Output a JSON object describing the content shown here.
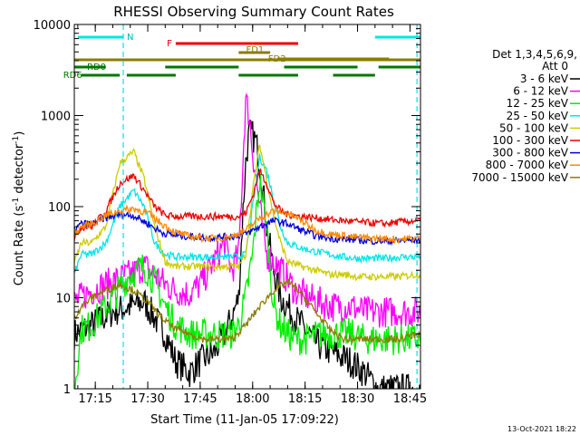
{
  "chart_data": {
    "type": "line",
    "title": "RHESSI Observing Summary Count Rates",
    "xlabel": "Start Time (11-Jan-05 17:09:22)",
    "ylabel_main": "Count Rate (s",
    "ylabel_sup1": "-1",
    "ylabel_mid": " detector",
    "ylabel_sup2": "-1",
    "ylabel_end": ")",
    "y_scale": "log",
    "ylim": [
      1,
      10000
    ],
    "xlim_min": [
      1029,
      1128
    ],
    "x_ticks": [
      {
        "t": 1035,
        "label": "17:15"
      },
      {
        "t": 1050,
        "label": "17:30"
      },
      {
        "t": 1065,
        "label": "17:45"
      },
      {
        "t": 1080,
        "label": "18:00"
      },
      {
        "t": 1095,
        "label": "18:15"
      },
      {
        "t": 1110,
        "label": "18:30"
      },
      {
        "t": 1125,
        "label": "18:45"
      }
    ],
    "y_ticks": [
      {
        "v": 1,
        "label": "1"
      },
      {
        "v": 10,
        "label": "10"
      },
      {
        "v": 100,
        "label": "100"
      },
      {
        "v": 1000,
        "label": "1000"
      },
      {
        "v": 10000,
        "label": "10000"
      }
    ],
    "legend_placement": "right",
    "legend_header": [
      "Det 1,3,4,5,6,9,",
      "Att 0"
    ],
    "footer_date": "13-Oct-2021 18:22",
    "series": [
      {
        "name": "3 - 6 keV",
        "color": "#000000",
        "x": [
          1029,
          1034,
          1040,
          1045,
          1049,
          1052,
          1055,
          1058,
          1062,
          1065,
          1069,
          1072,
          1074,
          1076,
          1077,
          1078,
          1079,
          1080,
          1081,
          1082,
          1083,
          1084,
          1086,
          1088,
          1090,
          1092,
          1094,
          1096,
          1099,
          1103,
          1108,
          1112,
          1116,
          1120,
          1124,
          1127
        ],
        "y": [
          4,
          5,
          7,
          8,
          9,
          6,
          4,
          2,
          1.5,
          2,
          2.5,
          4,
          6,
          10,
          60,
          300,
          650,
          600,
          500,
          300,
          150,
          60,
          20,
          10,
          8,
          6,
          5,
          4,
          3,
          2.5,
          2,
          1.5,
          1,
          1,
          1,
          1
        ]
      },
      {
        "name": "6 - 12 keV",
        "color": "#ff00ff",
        "x": [
          1029,
          1034,
          1040,
          1045,
          1049,
          1052,
          1055,
          1058,
          1062,
          1065,
          1069,
          1072,
          1074,
          1076,
          1077,
          1078,
          1079,
          1080,
          1081,
          1082,
          1083,
          1084,
          1086,
          1088,
          1090,
          1092,
          1094,
          1096,
          1099,
          1103,
          1108,
          1112,
          1116,
          1120,
          1124,
          1127
        ],
        "y": [
          9,
          12,
          15,
          18,
          22,
          18,
          14,
          12,
          11,
          14,
          25,
          40,
          20,
          30,
          200,
          1500,
          1000,
          400,
          200,
          100,
          50,
          30,
          25,
          20,
          16,
          12,
          11,
          10,
          9,
          8,
          8,
          7,
          7,
          7,
          7,
          7
        ]
      },
      {
        "name": "12 - 25 keV",
        "color": "#00ee00",
        "x": [
          1029,
          1031,
          1034,
          1040,
          1045,
          1049,
          1052,
          1055,
          1058,
          1062,
          1065,
          1069,
          1072,
          1074,
          1076,
          1078,
          1080,
          1082,
          1084,
          1086,
          1088,
          1090,
          1092,
          1094,
          1096,
          1099,
          1103,
          1108,
          1112,
          1116,
          1120,
          1124,
          1127
        ],
        "y": [
          1,
          4.5,
          5,
          10,
          18,
          22,
          15,
          8,
          5,
          4,
          4,
          4,
          4,
          4,
          5,
          10,
          30,
          200,
          60,
          8,
          5,
          4,
          3.5,
          3.5,
          3.5,
          4,
          4,
          4,
          3.5,
          3.5,
          3.5,
          3.5,
          3.5
        ]
      },
      {
        "name": "25 - 50 keV",
        "color": "#00e5e5",
        "x": [
          1029,
          1031,
          1034,
          1038,
          1042,
          1046,
          1049,
          1052,
          1055,
          1058,
          1062,
          1066,
          1070,
          1074,
          1076,
          1078,
          1080,
          1082,
          1084,
          1086,
          1088,
          1090,
          1094,
          1098,
          1102,
          1106,
          1110,
          1114,
          1118,
          1122,
          1127
        ],
        "y": [
          18,
          30,
          30,
          40,
          100,
          150,
          100,
          40,
          30,
          28,
          28,
          28,
          28,
          28,
          28,
          30,
          100,
          350,
          250,
          120,
          60,
          40,
          35,
          32,
          30,
          28,
          27,
          27,
          27,
          28,
          28
        ]
      },
      {
        "name": "50 - 100 keV",
        "color": "#cccc00",
        "x": [
          1029,
          1031,
          1034,
          1038,
          1042,
          1046,
          1049,
          1052,
          1055,
          1058,
          1062,
          1066,
          1070,
          1074,
          1076,
          1078,
          1080,
          1082,
          1084,
          1086,
          1088,
          1090,
          1094,
          1098,
          1102,
          1106,
          1110,
          1114,
          1118,
          1122,
          1127
        ],
        "y": [
          24,
          40,
          40,
          60,
          300,
          400,
          200,
          60,
          25,
          22,
          22,
          22,
          22,
          22,
          22,
          30,
          150,
          480,
          200,
          80,
          40,
          25,
          22,
          20,
          18,
          18,
          17,
          17,
          17,
          17,
          18
        ]
      },
      {
        "name": "100 - 300 keV",
        "color": "#ee0000",
        "x": [
          1029,
          1031,
          1034,
          1038,
          1042,
          1046,
          1049,
          1052,
          1055,
          1058,
          1062,
          1066,
          1070,
          1074,
          1076,
          1078,
          1080,
          1082,
          1084,
          1086,
          1088,
          1090,
          1094,
          1098,
          1102,
          1106,
          1110,
          1114,
          1118,
          1122,
          1127
        ],
        "y": [
          45,
          60,
          60,
          90,
          180,
          220,
          150,
          100,
          80,
          78,
          78,
          78,
          78,
          78,
          78,
          85,
          130,
          250,
          180,
          110,
          90,
          82,
          78,
          75,
          72,
          70,
          68,
          66,
          65,
          68,
          70
        ]
      },
      {
        "name": "300 - 800 keV",
        "color": "#0000dd",
        "x": [
          1029,
          1031,
          1034,
          1038,
          1042,
          1046,
          1050,
          1054,
          1058,
          1062,
          1066,
          1070,
          1074,
          1078,
          1082,
          1086,
          1090,
          1094,
          1098,
          1102,
          1106,
          1110,
          1114,
          1118,
          1122,
          1127
        ],
        "y": [
          55,
          65,
          65,
          75,
          82,
          80,
          65,
          52,
          48,
          47,
          46,
          46,
          47,
          50,
          60,
          70,
          65,
          55,
          48,
          45,
          44,
          43,
          42,
          42,
          42,
          43
        ]
      },
      {
        "name": "800 - 7000 keV",
        "color": "#ff8800",
        "x": [
          1029,
          1031,
          1034,
          1038,
          1042,
          1046,
          1050,
          1054,
          1058,
          1062,
          1066,
          1070,
          1074,
          1078,
          1082,
          1086,
          1090,
          1094,
          1098,
          1102,
          1106,
          1110,
          1114,
          1118,
          1122,
          1127
        ],
        "y": [
          50,
          60,
          65,
          80,
          90,
          95,
          85,
          65,
          52,
          47,
          45,
          45,
          47,
          55,
          75,
          90,
          85,
          70,
          55,
          50,
          48,
          46,
          45,
          44,
          44,
          45
        ]
      },
      {
        "name": "7000 - 15000 keV",
        "color": "#8b7d00",
        "x": [
          1029,
          1031,
          1034,
          1038,
          1042,
          1046,
          1050,
          1054,
          1058,
          1062,
          1066,
          1070,
          1074,
          1078,
          1082,
          1086,
          1090,
          1094,
          1098,
          1102,
          1106,
          1110,
          1114,
          1118,
          1122,
          1127
        ],
        "y": [
          6,
          8,
          10,
          12,
          14,
          12,
          9,
          6,
          4.5,
          4,
          3.5,
          3.5,
          3.5,
          5,
          8,
          12,
          15,
          11,
          7,
          4.5,
          3.5,
          3.5,
          3.5,
          3.5,
          3.5,
          4
        ]
      }
    ],
    "vlines": [
      1043,
      1127
    ],
    "cyan_bars": [
      {
        "label": "N",
        "t0": 1030,
        "t1": 1043
      },
      {
        "label": "",
        "t0": 1115,
        "t1": 1128
      }
    ],
    "flag_bars": [
      {
        "label": "F",
        "color": "#ee0000",
        "level": 1,
        "segments": [
          [
            1058,
            1080
          ],
          [
            1080,
            1093
          ]
        ]
      },
      {
        "label": "FD1",
        "color": "#8b7d00",
        "level": 2,
        "segments": [
          [
            1076,
            1085
          ]
        ]
      },
      {
        "label": "FD2",
        "color": "#8b7d00",
        "level": 3,
        "segments": [
          [
            1087,
            1119
          ]
        ]
      },
      {
        "label": "",
        "color": "#8b7d00",
        "level": 4,
        "segments": [
          [
            1029,
            1128
          ]
        ]
      },
      {
        "label": "RD0",
        "color": "#007700",
        "level": 5,
        "segments": [
          [
            1029,
            1038
          ],
          [
            1055,
            1076
          ],
          [
            1089,
            1110
          ],
          [
            1116,
            1128
          ]
        ]
      },
      {
        "label": "RD6",
        "color": "#007700",
        "level": 6,
        "segments": [
          [
            1031,
            1042
          ],
          [
            1044,
            1058
          ],
          [
            1076,
            1093
          ],
          [
            1103,
            1115
          ]
        ]
      }
    ]
  }
}
